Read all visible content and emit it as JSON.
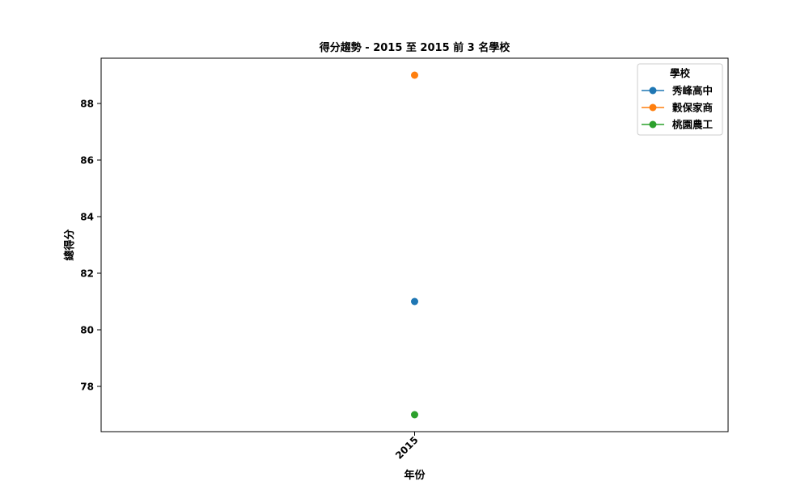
{
  "chart_data": {
    "type": "line",
    "title": "得分趨勢 - 2015 至 2015 前 3 名學校",
    "xlabel": "年份",
    "ylabel": "總得分",
    "x": [
      "2015"
    ],
    "ylim": [
      76.4,
      89.6
    ],
    "yticks": [
      78,
      80,
      82,
      84,
      86,
      88
    ],
    "grid": false,
    "legend": {
      "title": "學校",
      "placement": "top-right"
    },
    "series": [
      {
        "name": "秀峰高中",
        "color": "#1f77b4",
        "values": [
          81
        ]
      },
      {
        "name": "穀保家商",
        "color": "#ff7f0e",
        "values": [
          89
        ]
      },
      {
        "name": "桃園農工",
        "color": "#2ca02c",
        "values": [
          77
        ]
      }
    ]
  }
}
